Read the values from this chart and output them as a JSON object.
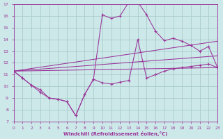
{
  "xlabel": "Windchill (Refroidissement éolien,°C)",
  "xlim": [
    0,
    23
  ],
  "ylim": [
    7,
    17
  ],
  "xticks": [
    0,
    1,
    2,
    3,
    4,
    5,
    6,
    7,
    8,
    9,
    10,
    11,
    12,
    13,
    14,
    15,
    16,
    17,
    18,
    19,
    20,
    21,
    22,
    23
  ],
  "yticks": [
    7,
    8,
    9,
    10,
    11,
    12,
    13,
    14,
    15,
    16,
    17
  ],
  "bg_color": "#cce8e8",
  "line_color": "#993399",
  "grid_color": "#aacccc",
  "upper_x": [
    0,
    1,
    2,
    3,
    4,
    5,
    6,
    7,
    8,
    9,
    10,
    11,
    12,
    13,
    14,
    15,
    16,
    17,
    18,
    19,
    20,
    21,
    22,
    23
  ],
  "upper_y": [
    11.3,
    10.7,
    10.1,
    9.7,
    9.0,
    8.9,
    8.7,
    7.5,
    9.3,
    10.6,
    16.1,
    15.8,
    16.0,
    17.2,
    17.2,
    16.1,
    14.7,
    13.9,
    14.1,
    13.85,
    13.5,
    13.0,
    13.4,
    11.6
  ],
  "lower_x": [
    0,
    1,
    2,
    3,
    4,
    5,
    6,
    7,
    8,
    9,
    10,
    11,
    12,
    13,
    14,
    15,
    16,
    17,
    18,
    19,
    20,
    21,
    22,
    23
  ],
  "lower_y": [
    11.3,
    10.7,
    10.1,
    9.5,
    9.0,
    8.9,
    8.7,
    7.5,
    9.3,
    10.6,
    10.3,
    10.2,
    10.35,
    10.5,
    14.0,
    10.7,
    11.0,
    11.3,
    11.5,
    11.6,
    11.7,
    11.8,
    11.9,
    11.6
  ],
  "reg_line1": {
    "x": [
      0,
      23
    ],
    "y": [
      11.3,
      11.6
    ]
  },
  "reg_line2": {
    "x": [
      0,
      23
    ],
    "y": [
      11.3,
      13.85
    ]
  },
  "reg_line3": {
    "x": [
      0,
      23
    ],
    "y": [
      11.3,
      12.6
    ]
  }
}
